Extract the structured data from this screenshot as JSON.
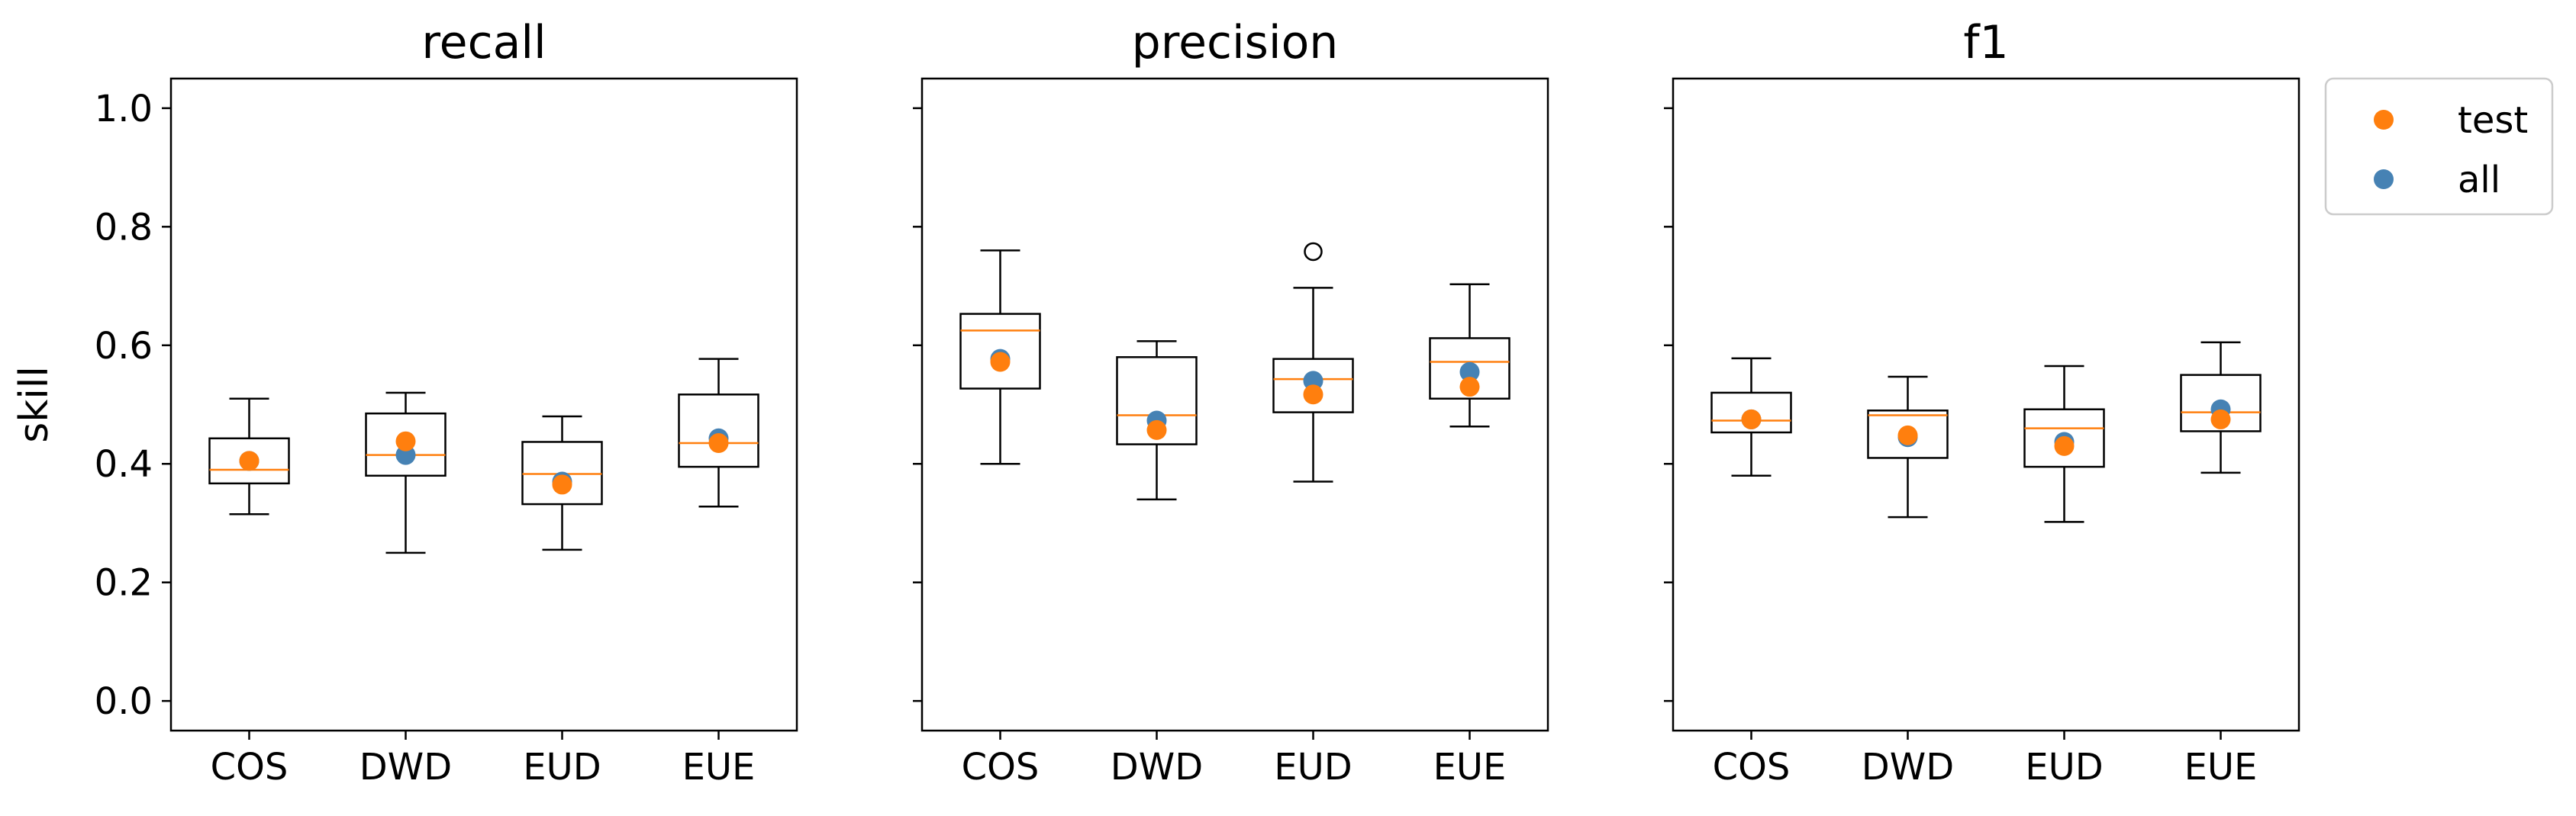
{
  "chart_data": {
    "type": "box",
    "categories": [
      "COS",
      "DWD",
      "EUD",
      "EUE"
    ],
    "ylabel": "skill",
    "ylim": [
      -0.05,
      1.05
    ],
    "yticks": [
      0.0,
      0.2,
      0.4,
      0.6,
      0.8,
      1.0
    ],
    "grid": false,
    "legend": {
      "placement": "outside-top-right",
      "entries": [
        {
          "label": "test",
          "color": "#ff7f0e"
        },
        {
          "label": "all",
          "color": "#4682b4"
        }
      ]
    },
    "colors": {
      "median": "#ff7f0e",
      "test": "#ff7f0e",
      "all": "#4682b4",
      "box": "#000000"
    },
    "panels": [
      {
        "title": "recall",
        "boxes": [
          {
            "category": "COS",
            "whislo": 0.315,
            "q1": 0.367,
            "med": 0.39,
            "q3": 0.443,
            "whishi": 0.51,
            "fliers": []
          },
          {
            "category": "DWD",
            "whislo": 0.25,
            "q1": 0.38,
            "med": 0.415,
            "q3": 0.485,
            "whishi": 0.52,
            "fliers": []
          },
          {
            "category": "EUD",
            "whislo": 0.255,
            "q1": 0.332,
            "med": 0.383,
            "q3": 0.437,
            "whishi": 0.48,
            "fliers": []
          },
          {
            "category": "EUE",
            "whislo": 0.328,
            "q1": 0.395,
            "med": 0.435,
            "q3": 0.517,
            "whishi": 0.577,
            "fliers": []
          }
        ],
        "all": [
          0.405,
          0.415,
          0.37,
          0.443
        ],
        "test": [
          0.405,
          0.438,
          0.365,
          0.435
        ]
      },
      {
        "title": "precision",
        "boxes": [
          {
            "category": "COS",
            "whislo": 0.4,
            "q1": 0.527,
            "med": 0.625,
            "q3": 0.653,
            "whishi": 0.76,
            "fliers": []
          },
          {
            "category": "DWD",
            "whislo": 0.34,
            "q1": 0.433,
            "med": 0.482,
            "q3": 0.58,
            "whishi": 0.607,
            "fliers": []
          },
          {
            "category": "EUD",
            "whislo": 0.37,
            "q1": 0.487,
            "med": 0.543,
            "q3": 0.577,
            "whishi": 0.697,
            "fliers": [
              0.758
            ]
          },
          {
            "category": "EUE",
            "whislo": 0.463,
            "q1": 0.51,
            "med": 0.572,
            "q3": 0.612,
            "whishi": 0.703,
            "fliers": []
          }
        ],
        "all": [
          0.577,
          0.473,
          0.54,
          0.555
        ],
        "test": [
          0.572,
          0.457,
          0.517,
          0.53
        ]
      },
      {
        "title": "f1",
        "boxes": [
          {
            "category": "COS",
            "whislo": 0.38,
            "q1": 0.453,
            "med": 0.473,
            "q3": 0.52,
            "whishi": 0.578,
            "fliers": []
          },
          {
            "category": "DWD",
            "whislo": 0.31,
            "q1": 0.41,
            "med": 0.482,
            "q3": 0.49,
            "whishi": 0.547,
            "fliers": []
          },
          {
            "category": "EUD",
            "whislo": 0.302,
            "q1": 0.395,
            "med": 0.46,
            "q3": 0.492,
            "whishi": 0.565,
            "fliers": []
          },
          {
            "category": "EUE",
            "whislo": 0.385,
            "q1": 0.455,
            "med": 0.487,
            "q3": 0.55,
            "whishi": 0.605,
            "fliers": []
          }
        ],
        "all": [
          0.475,
          0.445,
          0.437,
          0.492
        ],
        "test": [
          0.475,
          0.448,
          0.43,
          0.475
        ]
      }
    ]
  }
}
